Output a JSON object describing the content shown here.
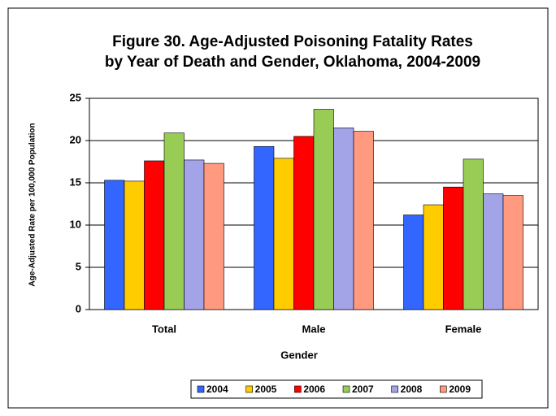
{
  "chart_data": {
    "type": "bar",
    "title": [
      "Figure 30. Age-Adjusted Poisoning Fatality Rates",
      "by Year of Death and Gender, Oklahoma, 2004-2009"
    ],
    "x_label": "Gender",
    "y_label": "Age-Adjusted Rate per 100,000 Population",
    "categories": [
      "Total",
      "Male",
      "Female"
    ],
    "series": [
      {
        "name": "2004",
        "color": "#3366ff",
        "values": [
          15.3,
          19.3,
          11.2
        ]
      },
      {
        "name": "2005",
        "color": "#ffcc00",
        "values": [
          15.2,
          17.9,
          12.4
        ]
      },
      {
        "name": "2006",
        "color": "#ff0000",
        "values": [
          17.6,
          20.5,
          14.5
        ]
      },
      {
        "name": "2007",
        "color": "#99cc55",
        "values": [
          20.9,
          23.7,
          17.8
        ]
      },
      {
        "name": "2008",
        "color": "#a3a3e8",
        "values": [
          17.7,
          21.5,
          13.7
        ]
      },
      {
        "name": "2009",
        "color": "#ff9980",
        "values": [
          17.3,
          21.1,
          13.5
        ]
      }
    ],
    "ylim": [
      0,
      25
    ],
    "yticks": [
      0,
      5,
      10,
      15,
      20,
      25
    ],
    "grid": true,
    "legend": "bottom"
  }
}
